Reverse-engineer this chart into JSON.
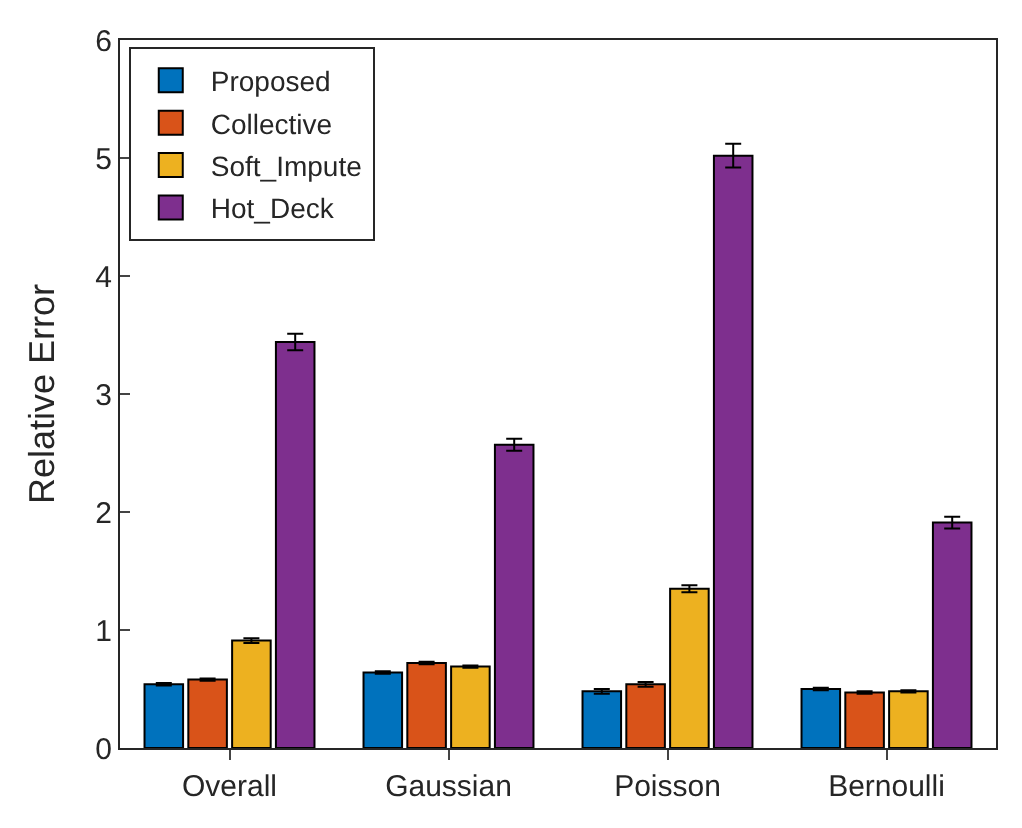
{
  "chart_data": {
    "type": "bar",
    "ylabel": "Relative Error",
    "categories": [
      "Overall",
      "Gaussian",
      "Poisson",
      "Bernoulli"
    ],
    "series": [
      {
        "name": "Proposed",
        "color": "#0072bd",
        "values": [
          0.54,
          0.64,
          0.48,
          0.5
        ],
        "errors": [
          0.01,
          0.01,
          0.02,
          0.01
        ]
      },
      {
        "name": "Collective",
        "color": "#d95319",
        "values": [
          0.58,
          0.72,
          0.54,
          0.47
        ],
        "errors": [
          0.01,
          0.01,
          0.02,
          0.01
        ]
      },
      {
        "name": "Soft_Impute",
        "color": "#edb120",
        "values": [
          0.91,
          0.69,
          1.35,
          0.48
        ],
        "errors": [
          0.02,
          0.01,
          0.03,
          0.01
        ]
      },
      {
        "name": "Hot_Deck",
        "color": "#7e2f8e",
        "values": [
          3.44,
          2.57,
          5.02,
          1.91
        ],
        "errors": [
          0.07,
          0.05,
          0.1,
          0.05
        ]
      }
    ],
    "ylim": [
      0,
      6
    ],
    "yticks": [
      0,
      1,
      2,
      3,
      4,
      5,
      6
    ],
    "legend": "top left"
  }
}
